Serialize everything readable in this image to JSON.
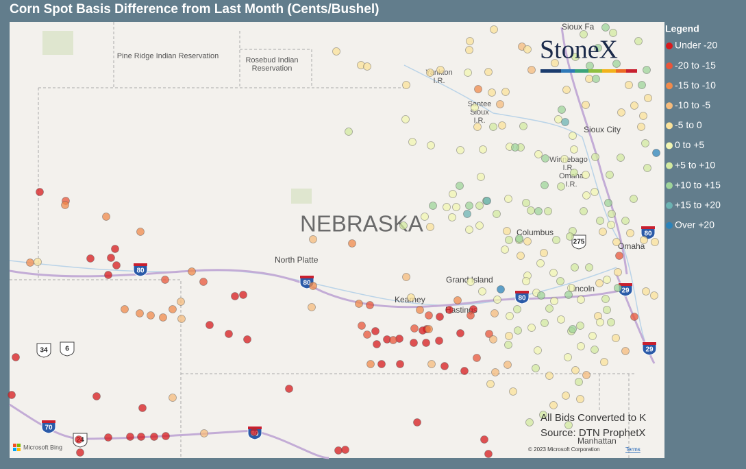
{
  "title": "Corn Spot Basis Difference from Last Month (Cents/Bushel)",
  "legend": {
    "title": "Legend",
    "items": [
      {
        "label": "Under -20",
        "color": "#d7191c"
      },
      {
        "label": "-20 to -15",
        "color": "#e8553a"
      },
      {
        "label": "-15 to -10",
        "color": "#f08a4b"
      },
      {
        "label": "-10 to -5",
        "color": "#f6bb7c"
      },
      {
        "label": "-5 to 0",
        "color": "#fbe29a"
      },
      {
        "label": "0 to +5",
        "color": "#f1f5b2"
      },
      {
        "label": "+5 to +10",
        "color": "#d3eaa0"
      },
      {
        "label": "+10 to +15",
        "color": "#9fd49a"
      },
      {
        "label": "+15 to +20",
        "color": "#6cb3b3"
      },
      {
        "label": "Over +20",
        "color": "#2b83ba"
      }
    ]
  },
  "map": {
    "state_label": "NEBRASKA",
    "labels": [
      "Pine Ridge Indian Reservation",
      "Rosebud Indian",
      "Reservation",
      "Yankton",
      "I.R.",
      "Santee",
      "Sioux",
      "I.R.",
      "Sioux City",
      "Winnebago",
      "I.R.",
      "Omaha",
      "I.R.",
      "North Platte",
      "Columbus",
      "Omaha",
      "Grand Island",
      "Kearney",
      "Hastings",
      "Lincoln",
      "Manhattan",
      "Sioux Fa"
    ],
    "highways": [
      "80",
      "80",
      "80",
      "80",
      "34",
      "6",
      "70",
      "24",
      "275",
      "29",
      "29",
      "80"
    ]
  },
  "logo": "StoneX",
  "notes": [
    "All Bids Converted to K",
    "Source: DTN ProphetX"
  ],
  "attribution": {
    "provider": "Microsoft Bing",
    "copyright": "© 2023 Microsoft Corporation",
    "terms": "Terms"
  }
}
